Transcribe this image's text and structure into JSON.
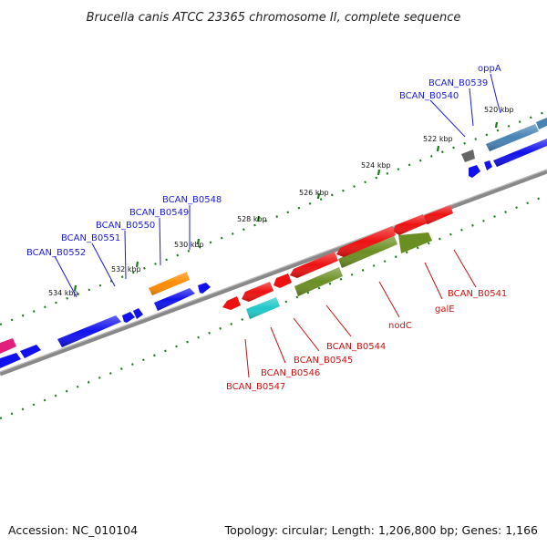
{
  "title": "Brucella canis ATCC 23365 chromosome II, complete sequence",
  "footer": {
    "accession": "Accession: NC_010104",
    "summary": "Topology: circular; Length: 1,206,800 bp; Genes: 1,166"
  },
  "ticks": [
    "520 kbp",
    "522 kbp",
    "524 kbp",
    "526 kbp",
    "528 kbp",
    "530 kbp",
    "532 kbp",
    "534 kbp"
  ],
  "forward_labels": [
    "oppA",
    "BCAN_B0539",
    "BCAN_B0540",
    "BCAN_B0548",
    "BCAN_B0549",
    "BCAN_B0550",
    "BCAN_B0551",
    "BCAN_B0552"
  ],
  "reverse_labels": [
    "BCAN_B0541",
    "galE",
    "nodC",
    "BCAN_B0544",
    "BCAN_B0545",
    "BCAN_B0546",
    "BCAN_B0547"
  ],
  "colors": {
    "forward_label": "#1a1adc",
    "reverse_label": "#cc1111",
    "cds_forward": "#1111ee",
    "cds_reverse": "#ee1111",
    "steelblue_gene": "#4682b4",
    "orange_gene": "#ff8c00",
    "olive_gene": "#6b8e23",
    "cyan_gene": "#20c8c8",
    "gray_gene": "#666666",
    "pink_gene": "#e0207a",
    "backbone": "#888888",
    "tick": "#1a7a1a"
  }
}
